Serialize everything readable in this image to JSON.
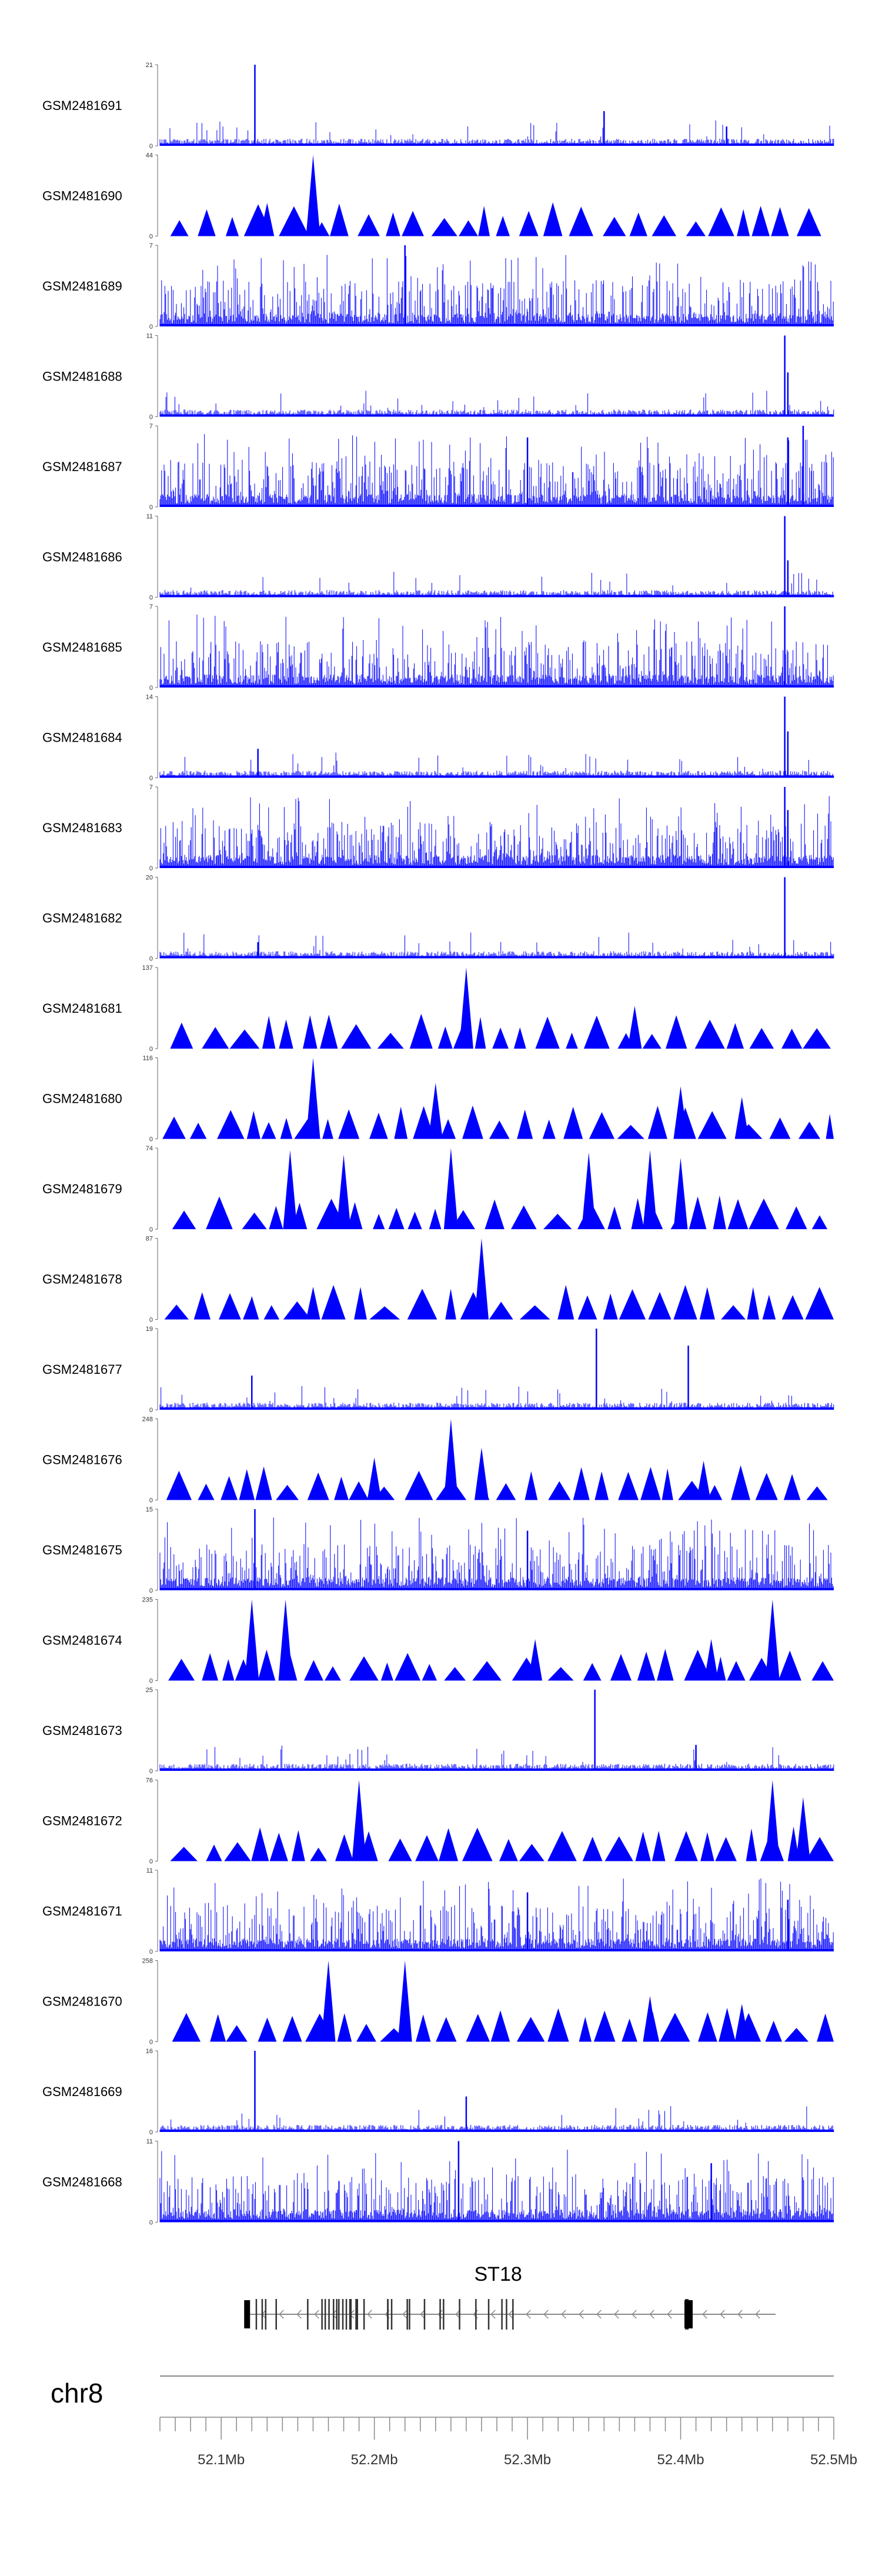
{
  "chart_data": {
    "type": "genome-tracks",
    "region": {
      "chrom": "chr8",
      "start": 52060000,
      "end": 52500000
    },
    "color": "#0000ff",
    "tracks": [
      {
        "name": "GSM2481691",
        "ymax": 21,
        "style": "noise",
        "peaks": [
          [
            52122000,
            21
          ],
          [
            52350000,
            9
          ],
          [
            52430000,
            5
          ]
        ]
      },
      {
        "name": "GSM2481690",
        "ymax": 44,
        "style": "tri",
        "peaks": [
          [
            52160000,
            44
          ],
          [
            52130000,
            18
          ]
        ]
      },
      {
        "name": "GSM2481689",
        "ymax": 7,
        "style": "dense",
        "peaks": [
          [
            52220000,
            7
          ]
        ]
      },
      {
        "name": "GSM2481688",
        "ymax": 11,
        "style": "noise",
        "peaks": [
          [
            52468000,
            11
          ],
          [
            52470000,
            6
          ]
        ]
      },
      {
        "name": "GSM2481687",
        "ymax": 7,
        "style": "dense",
        "peaks": [
          [
            52300000,
            6
          ],
          [
            52480000,
            7
          ],
          [
            52470000,
            6
          ]
        ]
      },
      {
        "name": "GSM2481686",
        "ymax": 11,
        "style": "noise",
        "peaks": [
          [
            52468000,
            11
          ],
          [
            52470000,
            5
          ]
        ]
      },
      {
        "name": "GSM2481685",
        "ymax": 7,
        "style": "dense",
        "peaks": [
          [
            52468000,
            7
          ]
        ]
      },
      {
        "name": "GSM2481684",
        "ymax": 14,
        "style": "noise",
        "peaks": [
          [
            52124000,
            5
          ],
          [
            52468000,
            14
          ],
          [
            52470000,
            8
          ]
        ]
      },
      {
        "name": "GSM2481683",
        "ymax": 7,
        "style": "dense",
        "peaks": [
          [
            52468000,
            7
          ],
          [
            52470000,
            5
          ]
        ]
      },
      {
        "name": "GSM2481682",
        "ymax": 20,
        "style": "noise",
        "peaks": [
          [
            52468000,
            20
          ],
          [
            52124000,
            4
          ]
        ]
      },
      {
        "name": "GSM2481681",
        "ymax": 137,
        "style": "tri",
        "peaks": [
          [
            52260000,
            137
          ],
          [
            52370000,
            72
          ]
        ]
      },
      {
        "name": "GSM2481680",
        "ymax": 116,
        "style": "tri",
        "peaks": [
          [
            52160000,
            116
          ],
          [
            52240000,
            80
          ],
          [
            52400000,
            75
          ],
          [
            52440000,
            60
          ]
        ]
      },
      {
        "name": "GSM2481679",
        "ymax": 74,
        "style": "tri",
        "peaks": [
          [
            52145000,
            72
          ],
          [
            52180000,
            68
          ],
          [
            52250000,
            74
          ],
          [
            52340000,
            70
          ],
          [
            52380000,
            72
          ],
          [
            52400000,
            65
          ]
        ]
      },
      {
        "name": "GSM2481678",
        "ymax": 87,
        "style": "tri",
        "peaks": [
          [
            52270000,
            87
          ],
          [
            52160000,
            35
          ],
          [
            52120000,
            25
          ]
        ]
      },
      {
        "name": "GSM2481677",
        "ymax": 19,
        "style": "noise",
        "peaks": [
          [
            52345000,
            19
          ],
          [
            52405000,
            15
          ],
          [
            52120000,
            8
          ]
        ]
      },
      {
        "name": "GSM2481676",
        "ymax": 248,
        "style": "tri",
        "peaks": [
          [
            52250000,
            248
          ],
          [
            52270000,
            160
          ],
          [
            52200000,
            130
          ],
          [
            52415000,
            120
          ]
        ]
      },
      {
        "name": "GSM2481675",
        "ymax": 15,
        "style": "dense",
        "peaks": [
          [
            52122000,
            15
          ],
          [
            52300000,
            11
          ]
        ]
      },
      {
        "name": "GSM2481674",
        "ymax": 235,
        "style": "tri",
        "peaks": [
          [
            52120000,
            235
          ],
          [
            52142000,
            235
          ],
          [
            52305000,
            120
          ],
          [
            52460000,
            235
          ],
          [
            52420000,
            120
          ]
        ]
      },
      {
        "name": "GSM2481673",
        "ymax": 25,
        "style": "noise",
        "peaks": [
          [
            52344000,
            25
          ],
          [
            52410000,
            8
          ]
        ]
      },
      {
        "name": "GSM2481672",
        "ymax": 76,
        "style": "tri",
        "peaks": [
          [
            52190000,
            76
          ],
          [
            52460000,
            76
          ],
          [
            52480000,
            60
          ]
        ]
      },
      {
        "name": "GSM2481671",
        "ymax": 11,
        "style": "dense",
        "peaks": [
          [
            52300000,
            8
          ],
          [
            52470000,
            7
          ]
        ]
      },
      {
        "name": "GSM2481670",
        "ymax": 258,
        "style": "tri",
        "peaks": [
          [
            52170000,
            258
          ],
          [
            52220000,
            258
          ],
          [
            52380000,
            145
          ],
          [
            52440000,
            120
          ]
        ]
      },
      {
        "name": "GSM2481669",
        "ymax": 16,
        "style": "noise",
        "peaks": [
          [
            52122000,
            16
          ],
          [
            52260000,
            7
          ]
        ]
      },
      {
        "name": "GSM2481668",
        "ymax": 11,
        "style": "dense",
        "peaks": [
          [
            52255000,
            11
          ],
          [
            52420000,
            8
          ]
        ]
      }
    ],
    "gene": {
      "name": "ST18",
      "start": 52115000,
      "end": 52462000,
      "strand": "-"
    },
    "chromosome_label": "chr8",
    "axis": {
      "ticks": [
        52100000,
        52200000,
        52300000,
        52400000,
        52500000
      ],
      "tick_labels": [
        "52.1Mb",
        "52.2Mb",
        "52.3Mb",
        "52.4Mb",
        "52.5Mb"
      ]
    }
  }
}
